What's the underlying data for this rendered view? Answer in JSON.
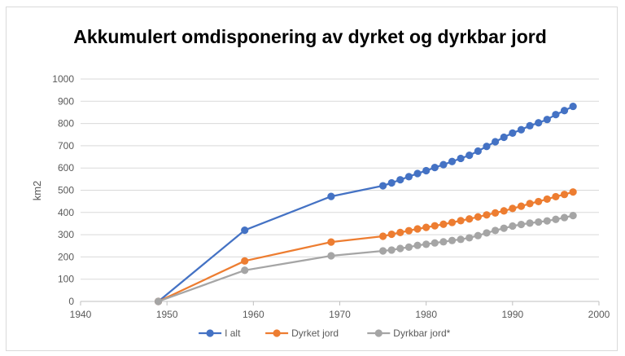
{
  "chart_data": {
    "type": "line",
    "title": "Akkumulert omdisponering av dyrket og dyrkbar jord",
    "ylabel": "km2",
    "xlabel": "",
    "xlim": [
      1940,
      2000
    ],
    "ylim": [
      0,
      1000
    ],
    "xticks": [
      1940,
      1950,
      1960,
      1970,
      1980,
      1990,
      2000
    ],
    "yticks": [
      0,
      100,
      200,
      300,
      400,
      500,
      600,
      700,
      800,
      900,
      1000
    ],
    "grid": "horizontal",
    "legend": "bottom",
    "series": [
      {
        "name": "I alt",
        "color": "#4472c4",
        "x": [
          1949,
          1959,
          1969,
          1975,
          1976,
          1977,
          1978,
          1979,
          1980,
          1981,
          1982,
          1983,
          1984,
          1985,
          1986,
          1987,
          1988,
          1989,
          1990,
          1991,
          1992,
          1993,
          1994,
          1995,
          1996,
          1997
        ],
        "y": [
          0,
          320,
          472,
          520,
          533,
          547,
          561,
          575,
          588,
          602,
          615,
          629,
          643,
          657,
          676,
          697,
          718,
          738,
          757,
          772,
          790,
          803,
          818,
          840,
          858,
          877
        ]
      },
      {
        "name": "Dyrket jord",
        "color": "#ed7d31",
        "x": [
          1949,
          1959,
          1969,
          1975,
          1976,
          1977,
          1978,
          1979,
          1980,
          1981,
          1982,
          1983,
          1984,
          1985,
          1986,
          1987,
          1988,
          1989,
          1990,
          1991,
          1992,
          1993,
          1994,
          1995,
          1996,
          1997
        ],
        "y": [
          0,
          182,
          267,
          293,
          302,
          310,
          318,
          326,
          333,
          340,
          347,
          355,
          363,
          371,
          380,
          389,
          398,
          407,
          418,
          428,
          440,
          449,
          460,
          471,
          481,
          492
        ]
      },
      {
        "name": "Dyrkbar jord*",
        "color": "#a5a5a5",
        "x": [
          1949,
          1959,
          1969,
          1975,
          1976,
          1977,
          1978,
          1979,
          1980,
          1981,
          1982,
          1983,
          1984,
          1985,
          1986,
          1987,
          1988,
          1989,
          1990,
          1991,
          1992,
          1993,
          1994,
          1995,
          1996,
          1997
        ],
        "y": [
          0,
          140,
          205,
          227,
          231,
          238,
          244,
          252,
          257,
          263,
          268,
          274,
          279,
          286,
          296,
          308,
          319,
          329,
          339,
          346,
          352,
          357,
          362,
          369,
          377,
          386
        ]
      }
    ]
  }
}
